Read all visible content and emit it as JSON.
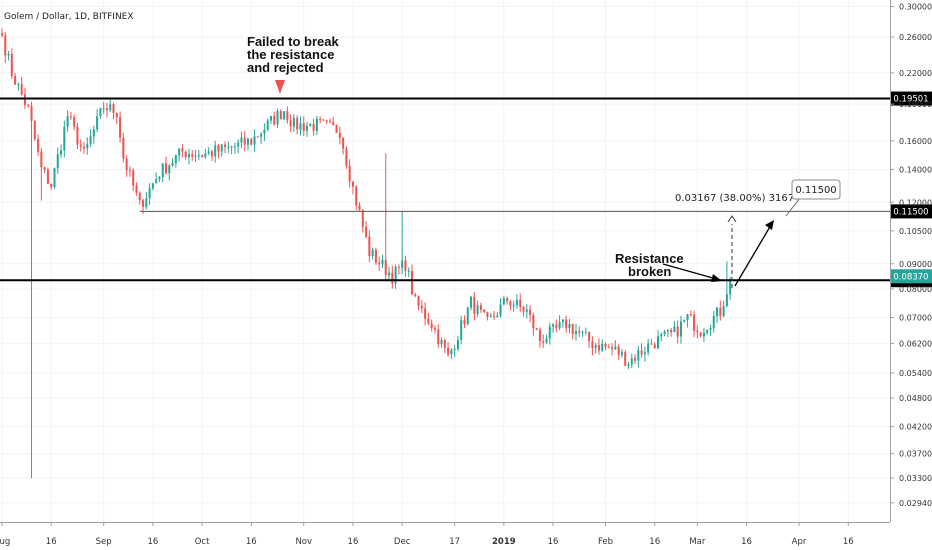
{
  "header": {
    "title": "Golem / Dollar, 1D, BITFINEX"
  },
  "annotations": {
    "top_line1": "Failed to break",
    "top_line2": "the resistance",
    "top_line3": "and rejected",
    "broken_line1": "Resistance",
    "broken_line2": "broken",
    "measure": "0.03167 (38.00%) 3167",
    "callout": "0.11500"
  },
  "colors": {
    "up": "#26a69a",
    "down": "#ef5350",
    "line": "#000000",
    "thin_line": "#555555",
    "label_green": "#26a69a",
    "label_black": "#000000",
    "grid": "#f0f3f5",
    "arrow_red": "#ef5350"
  },
  "chart_data": {
    "type": "candlestick",
    "symbol": "Golem / Dollar",
    "timeframe": "1D",
    "exchange": "BITFINEX",
    "y_scale": "log",
    "ylim": [
      0.027,
      0.305
    ],
    "y_ticks": [
      "0.30000",
      "0.26000",
      "0.22000",
      "0.19000",
      "0.16000",
      "0.14000",
      "0.12000",
      "0.10500",
      "0.09000",
      "0.08000",
      "0.07000",
      "0.06200",
      "0.05400",
      "0.04800",
      "0.04200",
      "0.03700",
      "0.03300",
      "0.02940"
    ],
    "y_tick_values": [
      0.3,
      0.26,
      0.22,
      0.19,
      0.16,
      0.14,
      0.12,
      0.105,
      0.09,
      0.08,
      0.07,
      0.062,
      0.054,
      0.048,
      0.042,
      0.037,
      0.033,
      0.0294
    ],
    "x_ticks": [
      "Aug",
      "16",
      "Sep",
      "16",
      "Oct",
      "16",
      "Nov",
      "16",
      "Dec",
      "17",
      "2019",
      "16",
      "Feb",
      "16",
      "Mar",
      "16",
      "Apr",
      "16"
    ],
    "x_tick_dates": [
      "2018-08-01",
      "2018-08-16",
      "2018-09-01",
      "2018-09-16",
      "2018-10-01",
      "2018-10-16",
      "2018-11-01",
      "2018-11-16",
      "2018-12-01",
      "2018-12-17",
      "2019-01-01",
      "2019-01-16",
      "2019-02-01",
      "2019-02-16",
      "2019-03-01",
      "2019-03-16",
      "2019-04-01",
      "2019-04-16"
    ],
    "start_date": "2018-08-01",
    "horizontal_levels": [
      {
        "value": 0.19501,
        "label": "0.19501",
        "style": "bold"
      },
      {
        "value": 0.115,
        "label": "0.11500",
        "style": "thin",
        "from": "2018-09-12"
      },
      {
        "value": 0.08334,
        "label": "0.08334",
        "style": "bold"
      }
    ],
    "last_price": {
      "value": 0.0837,
      "label": "0.08370"
    },
    "measure": {
      "from": 0.08334,
      "to": 0.115,
      "change": "0.03167 (38.00%) 3167",
      "date": "2019-03-10"
    },
    "projection": {
      "from_date": "2019-03-11",
      "from_value": 0.0837,
      "to_date": "2019-03-31",
      "to_value": 0.115
    },
    "key_points": [
      {
        "date": "2018-08-01",
        "value": 0.262
      },
      {
        "date": "2018-08-04",
        "value": 0.22
      },
      {
        "date": "2018-08-09",
        "value": 0.185
      },
      {
        "date": "2018-08-13",
        "value": 0.14
      },
      {
        "date": "2018-08-16",
        "value": 0.13
      },
      {
        "date": "2018-08-21",
        "value": 0.18
      },
      {
        "date": "2018-08-26",
        "value": 0.15
      },
      {
        "date": "2018-09-01",
        "value": 0.188
      },
      {
        "date": "2018-09-05",
        "value": 0.183
      },
      {
        "date": "2018-09-07",
        "value": 0.148
      },
      {
        "date": "2018-09-12",
        "value": 0.118
      },
      {
        "date": "2018-09-18",
        "value": 0.138
      },
      {
        "date": "2018-09-25",
        "value": 0.152
      },
      {
        "date": "2018-10-01",
        "value": 0.15
      },
      {
        "date": "2018-10-10",
        "value": 0.155
      },
      {
        "date": "2018-10-16",
        "value": 0.16
      },
      {
        "date": "2018-10-22",
        "value": 0.175
      },
      {
        "date": "2018-10-26",
        "value": 0.185
      },
      {
        "date": "2018-10-29",
        "value": 0.172
      },
      {
        "date": "2018-11-06",
        "value": 0.172
      },
      {
        "date": "2018-11-12",
        "value": 0.168
      },
      {
        "date": "2018-11-16",
        "value": 0.128
      },
      {
        "date": "2018-11-21",
        "value": 0.095
      },
      {
        "date": "2018-11-28",
        "value": 0.085
      },
      {
        "date": "2018-12-02",
        "value": 0.09
      },
      {
        "date": "2018-12-05",
        "value": 0.075
      },
      {
        "date": "2018-12-10",
        "value": 0.068
      },
      {
        "date": "2018-12-15",
        "value": 0.058
      },
      {
        "date": "2018-12-22",
        "value": 0.075
      },
      {
        "date": "2018-12-27",
        "value": 0.068
      },
      {
        "date": "2019-01-02",
        "value": 0.076
      },
      {
        "date": "2019-01-08",
        "value": 0.072
      },
      {
        "date": "2019-01-12",
        "value": 0.063
      },
      {
        "date": "2019-01-20",
        "value": 0.068
      },
      {
        "date": "2019-01-28",
        "value": 0.062
      },
      {
        "date": "2019-02-04",
        "value": 0.06
      },
      {
        "date": "2019-02-08",
        "value": 0.057
      },
      {
        "date": "2019-02-15",
        "value": 0.062
      },
      {
        "date": "2019-02-22",
        "value": 0.065
      },
      {
        "date": "2019-02-26",
        "value": 0.07
      },
      {
        "date": "2019-03-02",
        "value": 0.066
      },
      {
        "date": "2019-03-06",
        "value": 0.07
      },
      {
        "date": "2019-03-08",
        "value": 0.072
      },
      {
        "date": "2019-03-11",
        "value": 0.0837
      }
    ],
    "spikes": [
      {
        "date": "2018-08-10",
        "low": 0.033
      },
      {
        "date": "2018-08-13",
        "low": 0.121
      },
      {
        "date": "2018-11-26",
        "high": 0.151
      },
      {
        "date": "2018-12-01",
        "high": 0.115
      },
      {
        "date": "2019-03-10",
        "high": 0.091
      }
    ]
  }
}
